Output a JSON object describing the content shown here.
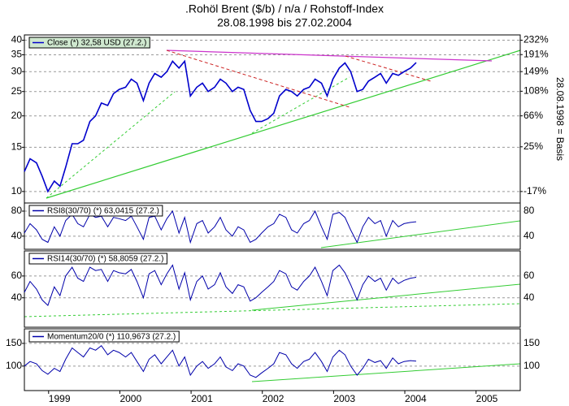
{
  "chart_data": {
    "type": "line",
    "title": ".Rohöl Brent ($/b) / n/a / Rohstoff-Index",
    "subtitle": "28.08.1998 bis 27.02.2004",
    "x": [
      1998.66,
      1998.74,
      1998.83,
      1998.91,
      1998.99,
      1999.08,
      1999.16,
      1999.24,
      1999.33,
      1999.41,
      1999.49,
      1999.58,
      1999.66,
      1999.74,
      1999.83,
      1999.91,
      1999.99,
      2000.08,
      2000.16,
      2000.24,
      2000.33,
      2000.41,
      2000.49,
      2000.58,
      2000.66,
      2000.74,
      2000.83,
      2000.91,
      2000.99,
      2001.08,
      2001.16,
      2001.24,
      2001.33,
      2001.41,
      2001.49,
      2001.58,
      2001.66,
      2001.74,
      2001.83,
      2001.91,
      2001.99,
      2002.08,
      2002.16,
      2002.24,
      2002.33,
      2002.41,
      2002.49,
      2002.58,
      2002.66,
      2002.74,
      2002.83,
      2002.91,
      2002.99,
      2003.08,
      2003.16,
      2003.24,
      2003.33,
      2003.41,
      2003.49,
      2003.58,
      2003.66,
      2003.74,
      2003.83,
      2003.91,
      2003.99,
      2004.08,
      2004.16
    ],
    "xlim": [
      1998.66,
      2005.62
    ],
    "xticks": [
      1999,
      2000,
      2001,
      2002,
      2003,
      2004,
      2005
    ],
    "grid": true,
    "panels": [
      {
        "log_scale": true,
        "ylim": [
          9,
          42
        ],
        "yticks": [
          10,
          15,
          20,
          25,
          30,
          35,
          40
        ],
        "y2lim": [
          -25.3,
          248.5
        ],
        "y2ticks": [
          {
            "value": -17,
            "label": "-17%"
          },
          {
            "value": 25,
            "label": "25%"
          },
          {
            "value": 66,
            "label": "66%"
          },
          {
            "value": 108,
            "label": "108%"
          },
          {
            "value": 149,
            "label": "149%"
          },
          {
            "value": 191,
            "label": "191%"
          },
          {
            "value": 232,
            "label": "232%"
          }
        ],
        "y2label": "28.08.1998 = Basis",
        "series": [
          {
            "name": "Close (*) 32,58 USD (27.2.)",
            "color": "#0000cc",
            "values": [
              12,
              13.5,
              13,
              11.5,
              10,
              11,
              10.5,
              12.5,
              15.5,
              15.5,
              16,
              19,
              20,
              22.5,
              22,
              24.5,
              25.5,
              26,
              28,
              27,
              23,
              27,
              29.5,
              28.5,
              30,
              33,
              31,
              33,
              24,
              26,
              27,
              25,
              26,
              28,
              27,
              25,
              26,
              25.5,
              21,
              19,
              19,
              19.5,
              20.5,
              24,
              25.5,
              25,
              24,
              25.5,
              26,
              28,
              27,
              24,
              28,
              31,
              32.5,
              30,
              25,
              25.5,
              27.5,
              28.5,
              29.5,
              27,
              29.5,
              29,
              30,
              31,
              32.58
            ]
          }
        ]
      },
      {
        "ylim": [
          19,
          93
        ],
        "yticks": [
          40,
          80
        ],
        "series": [
          {
            "name": "RSI8(30/70) (*) 63,0415 (27.2.)",
            "color": "#0000aa",
            "values": [
              45,
              60,
              50,
              35,
              30,
              55,
              40,
              65,
              75,
              60,
              55,
              75,
              70,
              72,
              55,
              70,
              68,
              65,
              72,
              55,
              35,
              70,
              72,
              50,
              68,
              80,
              45,
              70,
              30,
              60,
              65,
              45,
              55,
              70,
              50,
              40,
              55,
              50,
              30,
              35,
              45,
              55,
              60,
              75,
              70,
              50,
              45,
              60,
              65,
              80,
              55,
              35,
              75,
              78,
              70,
              50,
              30,
              55,
              70,
              60,
              65,
              40,
              65,
              55,
              60,
              62,
              63.04
            ]
          }
        ]
      },
      {
        "ylim": [
          13,
          83
        ],
        "yticks": [
          40,
          60
        ],
        "series": [
          {
            "name": "RSI14(30/70) (*) 58,8059 (27.2.)",
            "color": "#0000aa",
            "values": [
              45,
              55,
              48,
              38,
              33,
              50,
              42,
              60,
              68,
              58,
              55,
              68,
              65,
              66,
              55,
              65,
              63,
              62,
              66,
              55,
              40,
              62,
              65,
              52,
              62,
              70,
              48,
              63,
              38,
              55,
              60,
              48,
              52,
              63,
              50,
              44,
              52,
              50,
              37,
              40,
              45,
              50,
              55,
              65,
              62,
              50,
              47,
              55,
              60,
              68,
              55,
              42,
              65,
              70,
              63,
              52,
              38,
              52,
              60,
              55,
              58,
              47,
              58,
              53,
              56,
              58,
              58.81
            ]
          }
        ]
      },
      {
        "ylim": [
          46,
          182
        ],
        "yticks": [
          100,
          150
        ],
        "series": [
          {
            "name": "Momentum20/0 (*) 110,9673 (27.2.)",
            "color": "#0000aa",
            "values": [
              100,
              110,
              105,
              90,
              82,
              95,
              88,
              115,
              140,
              130,
              120,
              140,
              135,
              145,
              125,
              135,
              130,
              120,
              130,
              110,
              88,
              115,
              125,
              105,
              120,
              135,
              100,
              120,
              80,
              100,
              110,
              95,
              105,
              120,
              98,
              90,
              105,
              100,
              80,
              75,
              85,
              95,
              105,
              130,
              125,
              105,
              95,
              110,
              115,
              130,
              110,
              88,
              120,
              135,
              125,
              100,
              80,
              95,
              115,
              108,
              112,
              95,
              118,
              105,
              110,
              112,
              110.97
            ]
          }
        ]
      }
    ]
  }
}
